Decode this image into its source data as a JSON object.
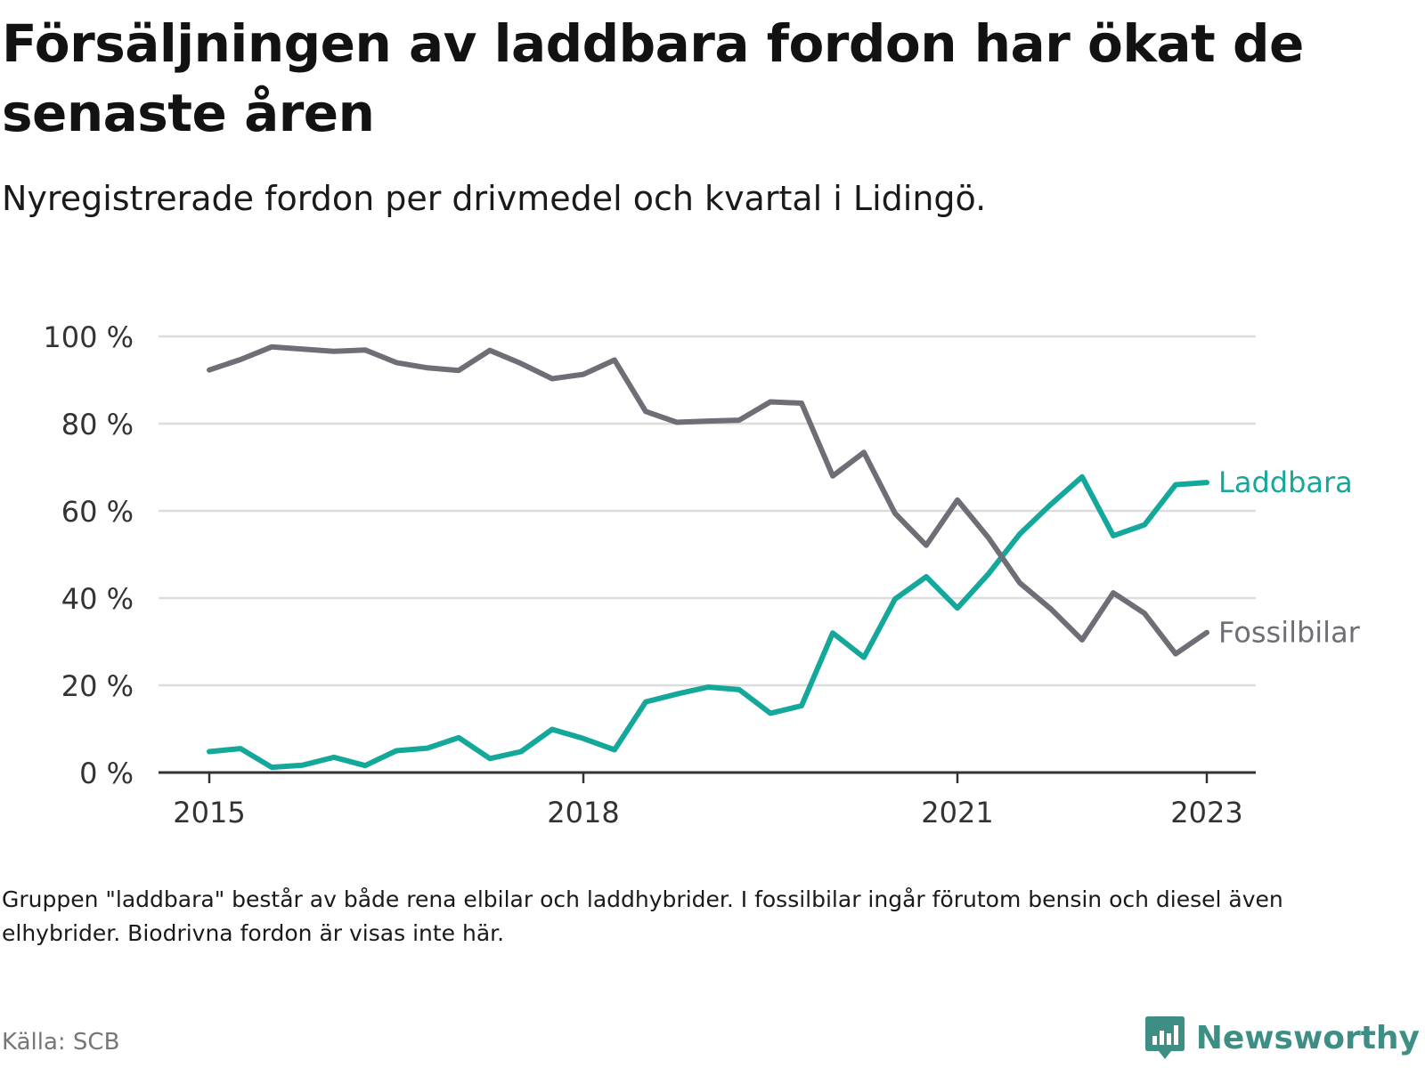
{
  "title": "Försäljningen av laddbara fordon har ökat de senaste åren",
  "subtitle": "Nyregistrerade fordon per drivmedel och kvartal i Lidingö.",
  "footnote": "Gruppen \"laddbara\" består av både rena elbilar och laddhybrider. I fossilbilar ingår förutom bensin och diesel även elhybrider. Biodrivna fordon är visas inte här.",
  "source": "Källa: SCB",
  "brand": {
    "name": "Newsworthy",
    "icon": "newsworthy-logo-icon"
  },
  "colors": {
    "laddbara": "#14a89b",
    "fossilbilar": "#6e6e77",
    "grid": "#dddddd",
    "axis": "#333333",
    "brand": "#3d8f85"
  },
  "chart_data": {
    "type": "line",
    "title": "Försäljningen av laddbara fordon har ökat de senaste åren",
    "xlabel": "",
    "ylabel": "",
    "ylim": [
      0,
      100
    ],
    "yticks": [
      0,
      20,
      40,
      60,
      80,
      100
    ],
    "ytick_labels": [
      "0 %",
      "20 %",
      "40 %",
      "60 %",
      "80 %",
      "100 %"
    ],
    "xlim": [
      2015,
      2023.25
    ],
    "xticks": [
      2015,
      2018,
      2021,
      2023
    ],
    "xtick_labels": [
      "2015",
      "2018",
      "2021",
      "2023"
    ],
    "grid": true,
    "x": [
      2015.0,
      2015.25,
      2015.5,
      2015.75,
      2016.0,
      2016.25,
      2016.5,
      2016.75,
      2017.0,
      2017.25,
      2017.5,
      2017.75,
      2018.0,
      2018.25,
      2018.5,
      2018.75,
      2019.0,
      2019.25,
      2019.5,
      2019.75,
      2020.0,
      2020.25,
      2020.5,
      2020.75,
      2021.0,
      2021.25,
      2021.5,
      2021.75,
      2022.0,
      2022.25,
      2022.5,
      2022.75,
      2023.0
    ],
    "series": [
      {
        "name": "Laddbara",
        "label": "Laddbara",
        "color": "#14a89b",
        "values": [
          4.8,
          5.5,
          1.2,
          1.7,
          3.5,
          1.6,
          5.0,
          5.6,
          8.0,
          3.2,
          4.8,
          9.9,
          7.8,
          5.2,
          16.2,
          18.0,
          19.6,
          19.0,
          13.6,
          15.3,
          32.0,
          26.4,
          39.8,
          44.9,
          37.7,
          45.6,
          54.7,
          61.5,
          67.8,
          54.3,
          56.8,
          66.0,
          66.5
        ]
      },
      {
        "name": "Fossilbilar",
        "label": "Fossilbilar",
        "color": "#6e6e77",
        "values": [
          92.3,
          94.7,
          97.6,
          97.1,
          96.6,
          96.9,
          94.0,
          92.8,
          92.2,
          96.8,
          93.8,
          90.3,
          91.3,
          94.6,
          82.8,
          80.3,
          80.6,
          80.8,
          85.0,
          84.7,
          68.0,
          73.4,
          59.4,
          52.1,
          62.5,
          53.8,
          43.5,
          37.5,
          30.4,
          41.2,
          36.5,
          27.2,
          32.1
        ]
      }
    ]
  }
}
